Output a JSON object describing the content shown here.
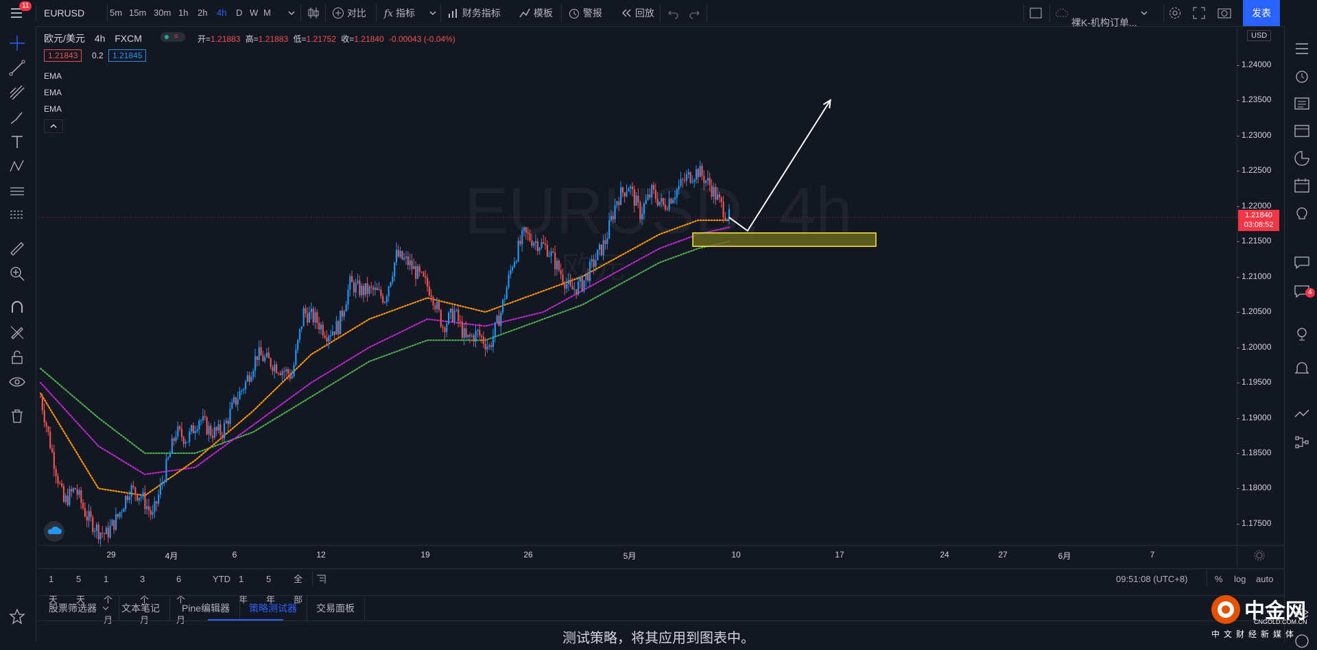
{
  "topbar": {
    "menu_badge": "11",
    "symbol": "EURUSD",
    "intervals": [
      "5m",
      "15m",
      "30m",
      "1h",
      "2h",
      "4h",
      "D",
      "W",
      "M"
    ],
    "active_interval": "4h",
    "compare_label": "对比",
    "indicators_label": "指标",
    "financials_label": "财务指标",
    "templates_label": "模板",
    "alert_label": "警报",
    "replay_label": "回放",
    "layout_name": "裸K-机构订单...",
    "publish_label": "发表"
  },
  "legend": {
    "title": "欧元/美元",
    "interval": "4h",
    "exchange": "FXCM",
    "open_label": "开=",
    "open": "1.21883",
    "high_label": "高=",
    "high": "1.21883",
    "low_label": "低=",
    "low": "1.21752",
    "close_label": "收=",
    "close": "1.21840",
    "change": "-0.00043 (-0.04%)",
    "bid": "1.21843",
    "spread": "0.2",
    "ask": "1.21845",
    "indicators": [
      "EMA",
      "EMA",
      "EMA"
    ]
  },
  "watermark": {
    "symbol": "EURUSD, 4h",
    "name": "欧元"
  },
  "price_axis": {
    "currency": "USD",
    "last_price": "1.21840",
    "countdown": "03:08:52"
  },
  "time_axis": {
    "labels": [
      {
        "t": "29"
      },
      {
        "t": "4月"
      },
      {
        "t": "6"
      },
      {
        "t": "12"
      },
      {
        "t": "19"
      },
      {
        "t": "26"
      },
      {
        "t": "5月"
      },
      {
        "t": "10"
      },
      {
        "t": "17"
      },
      {
        "t": "24"
      },
      {
        "t": "27"
      },
      {
        "t": "6月"
      },
      {
        "t": "7"
      }
    ]
  },
  "range_bar": {
    "ranges": [
      "1天",
      "5天",
      "1个月",
      "3个月",
      "6个月",
      "YTD",
      "1年",
      "5年",
      "全部"
    ],
    "clock": "09:51:08 (UTC+8)",
    "percent": "%",
    "log": "log",
    "auto": "auto"
  },
  "panel_tabs": [
    "股票筛选器",
    "文本笔记",
    "Pine编辑器",
    "策略测试器",
    "交易面板"
  ],
  "active_panel": "策略测试器",
  "panel_message": "测试策略，将其应用到图表中。",
  "brand": {
    "name": "中金网",
    "domain": "CNGOLD.COM.CN",
    "slogan": "中文财经新媒体"
  },
  "right_badge": "4",
  "colors": {
    "bull": "#2196f3",
    "bear": "#ef5350",
    "ema_fast": "#ff9800",
    "ema_mid": "#c026d3",
    "ema_slow": "#4caf50",
    "zone_fill": "#6b6b1e",
    "zone_border": "#ffeb3b",
    "accent": "#2962ff"
  },
  "chart_data": {
    "type": "candlestick",
    "symbol": "EURUSD",
    "interval": "4h",
    "ylim": [
      1.1715,
      1.2455
    ],
    "y_ticks": [
      "1.24000",
      "1.23500",
      "1.23000",
      "1.22500",
      "1.22000",
      "1.21500",
      "1.21000",
      "1.20500",
      "1.20000",
      "1.19500",
      "1.19000",
      "1.18500",
      "1.18000",
      "1.17500"
    ],
    "close_path": [
      [
        0,
        1.193
      ],
      [
        6,
        1.185
      ],
      [
        12,
        1.178
      ],
      [
        18,
        1.18
      ],
      [
        24,
        1.176
      ],
      [
        30,
        1.174
      ],
      [
        34,
        1.1735
      ],
      [
        40,
        1.176
      ],
      [
        46,
        1.18
      ],
      [
        52,
        1.179
      ],
      [
        58,
        1.176
      ],
      [
        64,
        1.182
      ],
      [
        70,
        1.188
      ],
      [
        76,
        1.187
      ],
      [
        82,
        1.19
      ],
      [
        88,
        1.188
      ],
      [
        94,
        1.188
      ],
      [
        100,
        1.192
      ],
      [
        106,
        1.195
      ],
      [
        112,
        1.199
      ],
      [
        118,
        1.198
      ],
      [
        124,
        1.197
      ],
      [
        130,
        1.196
      ],
      [
        136,
        1.205
      ],
      [
        142,
        1.204
      ],
      [
        148,
        1.202
      ],
      [
        154,
        1.203
      ],
      [
        160,
        1.209
      ],
      [
        166,
        1.208
      ],
      [
        172,
        1.208
      ],
      [
        178,
        1.207
      ],
      [
        184,
        1.213
      ],
      [
        190,
        1.212
      ],
      [
        196,
        1.21
      ],
      [
        202,
        1.208
      ],
      [
        208,
        1.203
      ],
      [
        214,
        1.205
      ],
      [
        220,
        1.201
      ],
      [
        226,
        1.202
      ],
      [
        232,
        1.2
      ],
      [
        238,
        1.205
      ],
      [
        244,
        1.212
      ],
      [
        250,
        1.216
      ],
      [
        256,
        1.215
      ],
      [
        262,
        1.214
      ],
      [
        268,
        1.211
      ],
      [
        274,
        1.208
      ],
      [
        280,
        1.209
      ],
      [
        286,
        1.212
      ],
      [
        292,
        1.215
      ],
      [
        298,
        1.221
      ],
      [
        304,
        1.223
      ],
      [
        310,
        1.219
      ],
      [
        316,
        1.222
      ],
      [
        322,
        1.22
      ],
      [
        328,
        1.222
      ],
      [
        334,
        1.224
      ],
      [
        340,
        1.225
      ],
      [
        346,
        1.223
      ],
      [
        352,
        1.22
      ],
      [
        356,
        1.2184
      ]
    ],
    "ema_fast": [
      [
        0,
        1.1935
      ],
      [
        30,
        1.18
      ],
      [
        54,
        1.179
      ],
      [
        80,
        1.184
      ],
      [
        110,
        1.191
      ],
      [
        140,
        1.199
      ],
      [
        170,
        1.204
      ],
      [
        200,
        1.207
      ],
      [
        230,
        1.205
      ],
      [
        260,
        1.208
      ],
      [
        280,
        1.21
      ],
      [
        300,
        1.213
      ],
      [
        320,
        1.216
      ],
      [
        340,
        1.218
      ],
      [
        356,
        1.218
      ]
    ],
    "ema_mid": [
      [
        0,
        1.195
      ],
      [
        30,
        1.186
      ],
      [
        54,
        1.182
      ],
      [
        80,
        1.183
      ],
      [
        110,
        1.189
      ],
      [
        140,
        1.195
      ],
      [
        170,
        1.2
      ],
      [
        200,
        1.204
      ],
      [
        230,
        1.203
      ],
      [
        260,
        1.205
      ],
      [
        280,
        1.208
      ],
      [
        300,
        1.211
      ],
      [
        320,
        1.214
      ],
      [
        340,
        1.216
      ],
      [
        356,
        1.217
      ]
    ],
    "ema_slow": [
      [
        0,
        1.197
      ],
      [
        30,
        1.19
      ],
      [
        54,
        1.185
      ],
      [
        80,
        1.185
      ],
      [
        110,
        1.188
      ],
      [
        140,
        1.193
      ],
      [
        170,
        1.198
      ],
      [
        200,
        1.201
      ],
      [
        230,
        1.201
      ],
      [
        260,
        1.204
      ],
      [
        280,
        1.206
      ],
      [
        300,
        1.209
      ],
      [
        320,
        1.212
      ],
      [
        340,
        1.214
      ],
      [
        356,
        1.215
      ]
    ],
    "zone": {
      "from_bar": 300,
      "to_bar": 400,
      "y_top": 1.2162,
      "y_bottom": 1.2143
    },
    "projection": [
      [
        356,
        1.2184
      ],
      [
        362,
        1.2165
      ],
      [
        380,
        1.235
      ]
    ],
    "last_price": 1.2184
  }
}
